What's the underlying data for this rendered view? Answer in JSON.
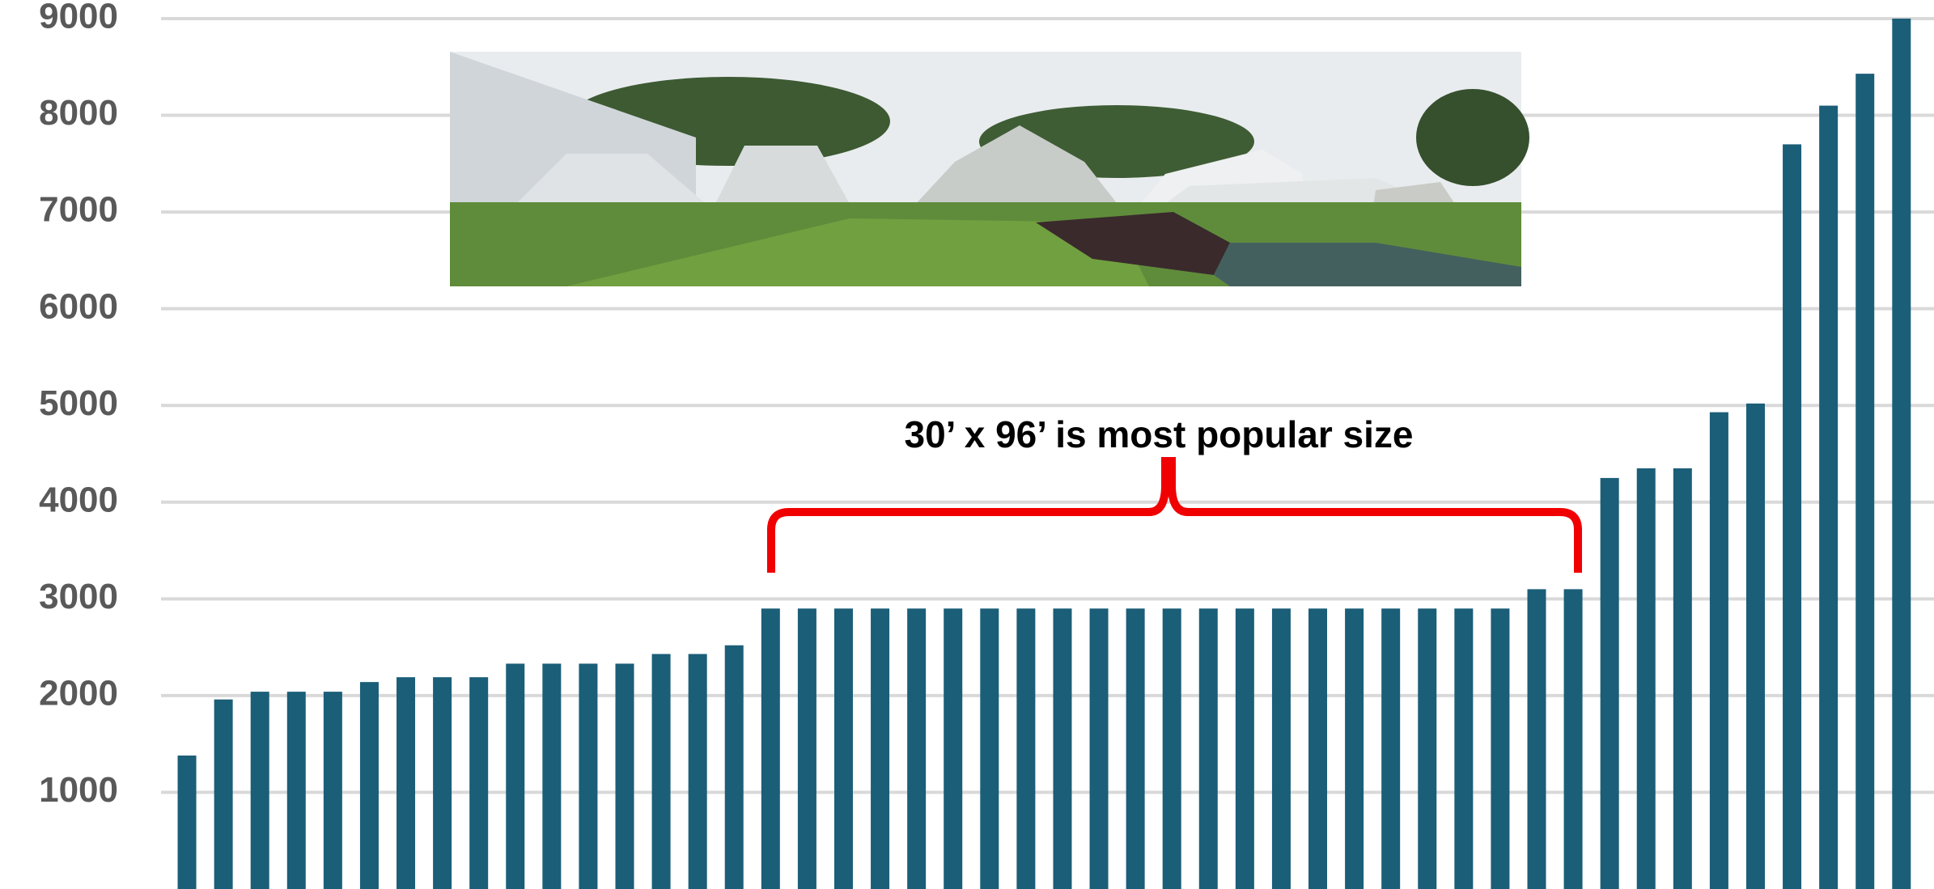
{
  "chart_data": {
    "type": "bar",
    "annotation": "30’ x 96’ is most popular size",
    "values": [
      1380,
      1960,
      2040,
      2040,
      2040,
      2140,
      2190,
      2190,
      2190,
      2330,
      2330,
      2330,
      2330,
      2430,
      2430,
      2520,
      2900,
      2900,
      2900,
      2900,
      2900,
      2900,
      2900,
      2900,
      2900,
      2900,
      2900,
      2900,
      2900,
      2900,
      2900,
      2900,
      2900,
      2900,
      2900,
      2900,
      2900,
      3100,
      3100,
      4250,
      4350,
      4350,
      4930,
      5020,
      7700,
      8100,
      8430,
      9000
    ],
    "color": "#1b5e78",
    "ylim": [
      0,
      9000
    ],
    "yticks": [
      1000,
      2000,
      3000,
      4000,
      5000,
      6000,
      7000,
      8000,
      9000
    ],
    "grid": true
  }
}
